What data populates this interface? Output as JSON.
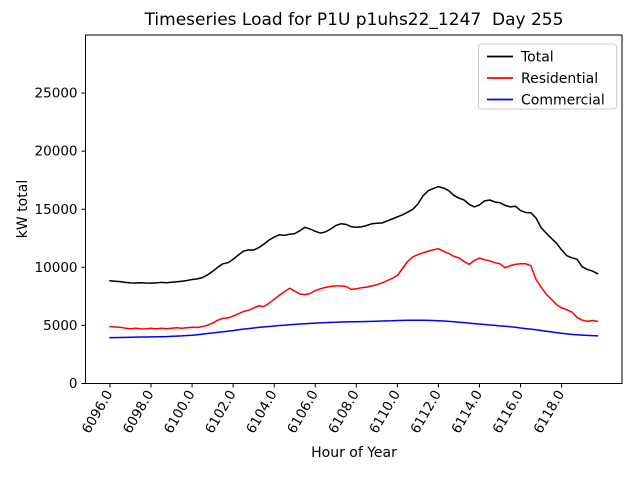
{
  "chart": {
    "title": "Timeseries Load for P1U p1uhs22_1247  Day 255",
    "xlabel": "Hour of Year",
    "ylabel": "kW total"
  },
  "legend": {
    "entries": [
      {
        "label": "Total",
        "color": "#000000"
      },
      {
        "label": "Residential",
        "color": "#ff0000"
      },
      {
        "label": "Commercial",
        "color": "#0000ff"
      }
    ]
  },
  "chart_data": {
    "type": "line",
    "title": "Timeseries Load for P1U p1uhs22_1247  Day 255",
    "xlabel": "Hour of Year",
    "ylabel": "kW total",
    "xlim": [
      6094.81,
      6120.94
    ],
    "ylim": [
      0,
      30000
    ],
    "grid": false,
    "legend_position": "upper right",
    "x_ticks": [
      6096,
      6098,
      6100,
      6102,
      6104,
      6106,
      6108,
      6110,
      6112,
      6114,
      6116,
      6118
    ],
    "x_tick_labels": [
      "6096.0",
      "6098.0",
      "6100.0",
      "6102.0",
      "6104.0",
      "6106.0",
      "6108.0",
      "6110.0",
      "6112.0",
      "6114.0",
      "6116.0",
      "6118.0"
    ],
    "y_ticks": [
      0,
      5000,
      10000,
      15000,
      20000,
      25000
    ],
    "y_tick_labels": [
      "0",
      "5000",
      "10000",
      "15000",
      "20000",
      "25000"
    ],
    "x_start": 6096.0,
    "x_step": 0.25,
    "x": [
      6096.0,
      6096.25,
      6096.5,
      6096.75,
      6097.0,
      6097.25,
      6097.5,
      6097.75,
      6098.0,
      6098.25,
      6098.5,
      6098.75,
      6099.0,
      6099.25,
      6099.5,
      6099.75,
      6100.0,
      6100.25,
      6100.5,
      6100.75,
      6101.0,
      6101.25,
      6101.5,
      6101.75,
      6102.0,
      6102.25,
      6102.5,
      6102.75,
      6103.0,
      6103.25,
      6103.5,
      6103.75,
      6104.0,
      6104.25,
      6104.5,
      6104.75,
      6105.0,
      6105.25,
      6105.5,
      6105.75,
      6106.0,
      6106.25,
      6106.5,
      6106.75,
      6107.0,
      6107.25,
      6107.5,
      6107.75,
      6108.0,
      6108.25,
      6108.5,
      6108.75,
      6109.0,
      6109.25,
      6109.5,
      6109.75,
      6110.0,
      6110.25,
      6110.5,
      6110.75,
      6111.0,
      6111.25,
      6111.5,
      6111.75,
      6112.0,
      6112.25,
      6112.5,
      6112.75,
      6113.0,
      6113.25,
      6113.5,
      6113.75,
      6114.0,
      6114.25,
      6114.5,
      6114.75,
      6115.0,
      6115.25,
      6115.5,
      6115.75,
      6116.0,
      6116.25,
      6116.5,
      6116.75,
      6117.0,
      6117.25,
      6117.5,
      6117.75,
      6118.0,
      6118.25,
      6118.5,
      6118.75,
      6119.0,
      6119.25,
      6119.5,
      6119.75
    ],
    "series": [
      {
        "name": "Total",
        "color": "#000000",
        "values": [
          8850,
          8800,
          8770,
          8700,
          8660,
          8650,
          8680,
          8650,
          8640,
          8660,
          8700,
          8680,
          8720,
          8760,
          8800,
          8870,
          8950,
          9000,
          9120,
          9350,
          9650,
          10000,
          10300,
          10400,
          10700,
          11050,
          11400,
          11500,
          11480,
          11700,
          12000,
          12350,
          12600,
          12800,
          12750,
          12850,
          12900,
          13150,
          13450,
          13300,
          13100,
          12950,
          13050,
          13300,
          13600,
          13750,
          13700,
          13500,
          13450,
          13480,
          13600,
          13750,
          13800,
          13820,
          14000,
          14160,
          14350,
          14520,
          14750,
          15000,
          15450,
          16150,
          16600,
          16780,
          16950,
          16820,
          16600,
          16200,
          15950,
          15800,
          15420,
          15200,
          15380,
          15720,
          15800,
          15620,
          15560,
          15330,
          15200,
          15260,
          14880,
          14720,
          14700,
          14250,
          13420,
          12950,
          12500,
          12080,
          11500,
          11000,
          10820,
          10700,
          10050,
          9820,
          9680,
          9450
        ]
      },
      {
        "name": "Residential",
        "color": "#ff0000",
        "values": [
          4900,
          4860,
          4850,
          4760,
          4700,
          4760,
          4720,
          4700,
          4750,
          4700,
          4760,
          4710,
          4760,
          4800,
          4760,
          4800,
          4850,
          4820,
          4900,
          5020,
          5200,
          5450,
          5600,
          5650,
          5800,
          6000,
          6200,
          6300,
          6500,
          6700,
          6620,
          6900,
          7250,
          7600,
          7900,
          8200,
          7950,
          7700,
          7650,
          7750,
          8000,
          8150,
          8270,
          8350,
          8400,
          8400,
          8350,
          8100,
          8150,
          8250,
          8300,
          8400,
          8500,
          8650,
          8850,
          9050,
          9300,
          9900,
          10500,
          10900,
          11100,
          11250,
          11400,
          11500,
          11600,
          11380,
          11200,
          10950,
          10800,
          10500,
          10250,
          10600,
          10800,
          10650,
          10550,
          10400,
          10300,
          9950,
          10150,
          10250,
          10300,
          10300,
          10150,
          8950,
          8300,
          7700,
          7250,
          6800,
          6500,
          6350,
          6150,
          5700,
          5450,
          5350,
          5420,
          5350
        ]
      },
      {
        "name": "Commercial",
        "color": "#0000ff",
        "values": [
          3950,
          3950,
          3960,
          3970,
          3980,
          3990,
          4000,
          4000,
          4010,
          4020,
          4030,
          4040,
          4060,
          4080,
          4100,
          4130,
          4160,
          4200,
          4250,
          4300,
          4350,
          4400,
          4450,
          4500,
          4550,
          4620,
          4680,
          4730,
          4780,
          4830,
          4870,
          4910,
          4950,
          4990,
          5020,
          5060,
          5090,
          5120,
          5150,
          5170,
          5200,
          5220,
          5240,
          5260,
          5270,
          5290,
          5300,
          5310,
          5320,
          5330,
          5340,
          5350,
          5360,
          5380,
          5390,
          5400,
          5420,
          5430,
          5440,
          5450,
          5450,
          5440,
          5430,
          5420,
          5400,
          5380,
          5350,
          5320,
          5280,
          5240,
          5200,
          5160,
          5120,
          5080,
          5040,
          5000,
          4960,
          4920,
          4880,
          4840,
          4780,
          4730,
          4680,
          4620,
          4560,
          4500,
          4440,
          4380,
          4320,
          4270,
          4230,
          4200,
          4170,
          4140,
          4120,
          4100
        ]
      }
    ]
  }
}
